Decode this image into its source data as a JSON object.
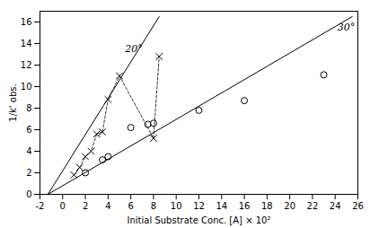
{
  "chart_data": {
    "type": "line",
    "xlabel": "Initial Substrate Conc. [A] × 10²",
    "ylabel": "1/k' obs.",
    "xlim": [
      -2,
      26
    ],
    "ylim": [
      0,
      17
    ],
    "xticks": [
      -2,
      0,
      2,
      4,
      6,
      8,
      10,
      12,
      14,
      16,
      18,
      20,
      22,
      24,
      26
    ],
    "yticks": [
      0,
      2,
      4,
      6,
      8,
      10,
      12,
      14,
      16
    ],
    "grid": false,
    "series": [
      {
        "type": "line",
        "x": [
          -1.3,
          8.5
        ],
        "values": [
          0.0,
          16.5
        ],
        "color": "#000000",
        "line_style": "solid"
      },
      {
        "type": "line",
        "x": [
          -1.3,
          25.5
        ],
        "values": [
          0.0,
          16.5
        ],
        "color": "#000000",
        "line_style": "solid"
      },
      {
        "type": "line",
        "x": [
          1.0,
          1.5,
          2.0,
          2.5,
          3.0,
          3.5,
          4.0,
          5.0,
          8.0,
          8.5
        ],
        "values": [
          1.8,
          2.5,
          3.5,
          4.0,
          5.6,
          5.8,
          8.8,
          11.0,
          5.2,
          12.8
        ],
        "color": "#000000",
        "marker": "x",
        "line_style": "dashed"
      },
      {
        "type": "scatter",
        "x": [
          2.0,
          3.5,
          4.0,
          6.0,
          7.5,
          8.0,
          12.0,
          16.0,
          23.0
        ],
        "values": [
          2.0,
          3.2,
          3.5,
          6.2,
          6.5,
          6.6,
          7.8,
          8.7,
          11.1
        ],
        "color": "#000000",
        "marker": "circle"
      }
    ],
    "annotations": [
      {
        "text": "20°",
        "x": 5.5,
        "y": 13.5,
        "color": "#000000"
      },
      {
        "text": "30°",
        "x": 24.2,
        "y": 15.5,
        "color": "#000000"
      }
    ]
  }
}
